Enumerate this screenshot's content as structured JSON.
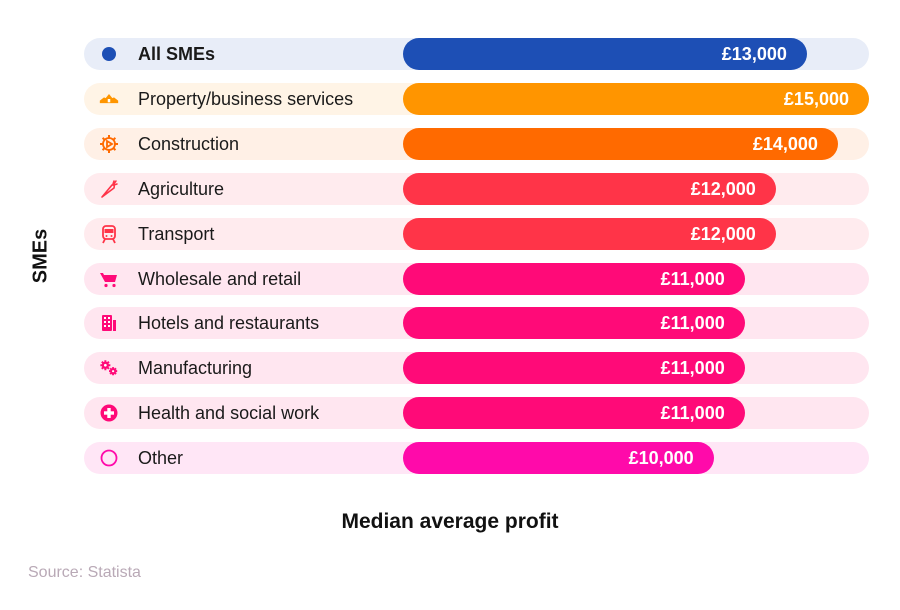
{
  "chart_data": {
    "type": "bar",
    "orientation": "horizontal",
    "title": "",
    "xlabel": "Median average profit",
    "ylabel": "SMEs",
    "xlim": [
      0,
      15000
    ],
    "grid": false,
    "legend": "none",
    "currency": "£",
    "categories": [
      "All SMEs",
      "Property/business services",
      "Construction",
      "Agriculture",
      "Transport",
      "Wholesale and retail",
      "Hotels and restaurants",
      "Manufacturing",
      "Health and social work",
      "Other"
    ],
    "values": [
      13000,
      15000,
      14000,
      12000,
      12000,
      11000,
      11000,
      11000,
      11000,
      10000
    ],
    "value_labels": [
      "£13,000",
      "£15,000",
      "£14,000",
      "£12,000",
      "£12,000",
      "£11,000",
      "£11,000",
      "£11,000",
      "£11,000",
      "£10,000"
    ],
    "icons": [
      "dot-icon",
      "property-icon",
      "construction-icon",
      "agriculture-icon",
      "transport-icon",
      "cart-icon",
      "hotel-icon",
      "gears-icon",
      "health-icon",
      "circle-outline-icon"
    ],
    "bar_colors": [
      "#1D4FB5",
      "#FF9500",
      "#FF6A00",
      "#FF3448",
      "#FF3448",
      "#FF0A78",
      "#FF0A78",
      "#FF0A78",
      "#FF0A78",
      "#FF0AAA"
    ],
    "track_colors": [
      "#E8EDF8",
      "#FFF4E6",
      "#FFF0E6",
      "#FFEBEE",
      "#FFEBEE",
      "#FFE6F0",
      "#FFE6F0",
      "#FFE6F0",
      "#FFE6F0",
      "#FFE6F6"
    ],
    "highlight": "All SMEs",
    "source": "Source: Statista"
  }
}
